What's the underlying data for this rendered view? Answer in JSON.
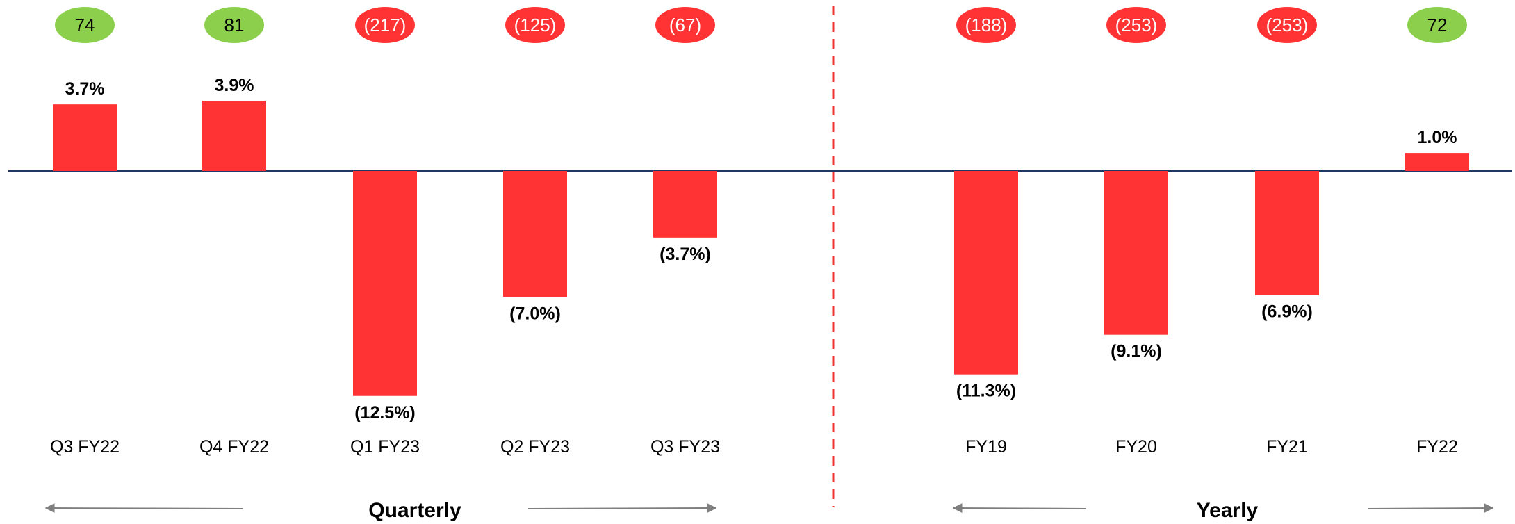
{
  "chart_data": {
    "type": "bar",
    "categories": [
      "Q3 FY22",
      "Q4 FY22",
      "Q1 FY23",
      "Q2 FY23",
      "Q3 FY23",
      "FY19",
      "FY20",
      "FY21",
      "FY22"
    ],
    "values": [
      3.7,
      3.9,
      -12.5,
      -7.0,
      -3.7,
      -11.3,
      -9.1,
      -6.9,
      1.0
    ],
    "value_labels": [
      "3.7%",
      "3.9%",
      "(12.5%)",
      "(7.0%)",
      "(3.7%)",
      "(11.3%)",
      "(9.1%)",
      "(6.9%)",
      "1.0%"
    ],
    "badges": [
      "74",
      "81",
      "(217)",
      "(125)",
      "(67)",
      "(188)",
      "(253)",
      "(253)",
      "72"
    ],
    "badge_colors": [
      "#8ccf4d",
      "#8ccf4d",
      "#ff3333",
      "#ff3333",
      "#ff3333",
      "#ff3333",
      "#ff3333",
      "#ff3333",
      "#8ccf4d"
    ],
    "sections": [
      {
        "label": "Quarterly"
      },
      {
        "label": "Yearly"
      }
    ],
    "ylim": [
      -14,
      6
    ],
    "grid": false,
    "title": "",
    "xlabel": "",
    "ylabel": ""
  },
  "colors": {
    "bar": "#ff3333",
    "baseline": "#1f3864",
    "divider": "#ee3333",
    "arrow": "#7f7f7f",
    "badge_text_on_green": "#000000",
    "badge_text_on_red": "#ffffff"
  }
}
